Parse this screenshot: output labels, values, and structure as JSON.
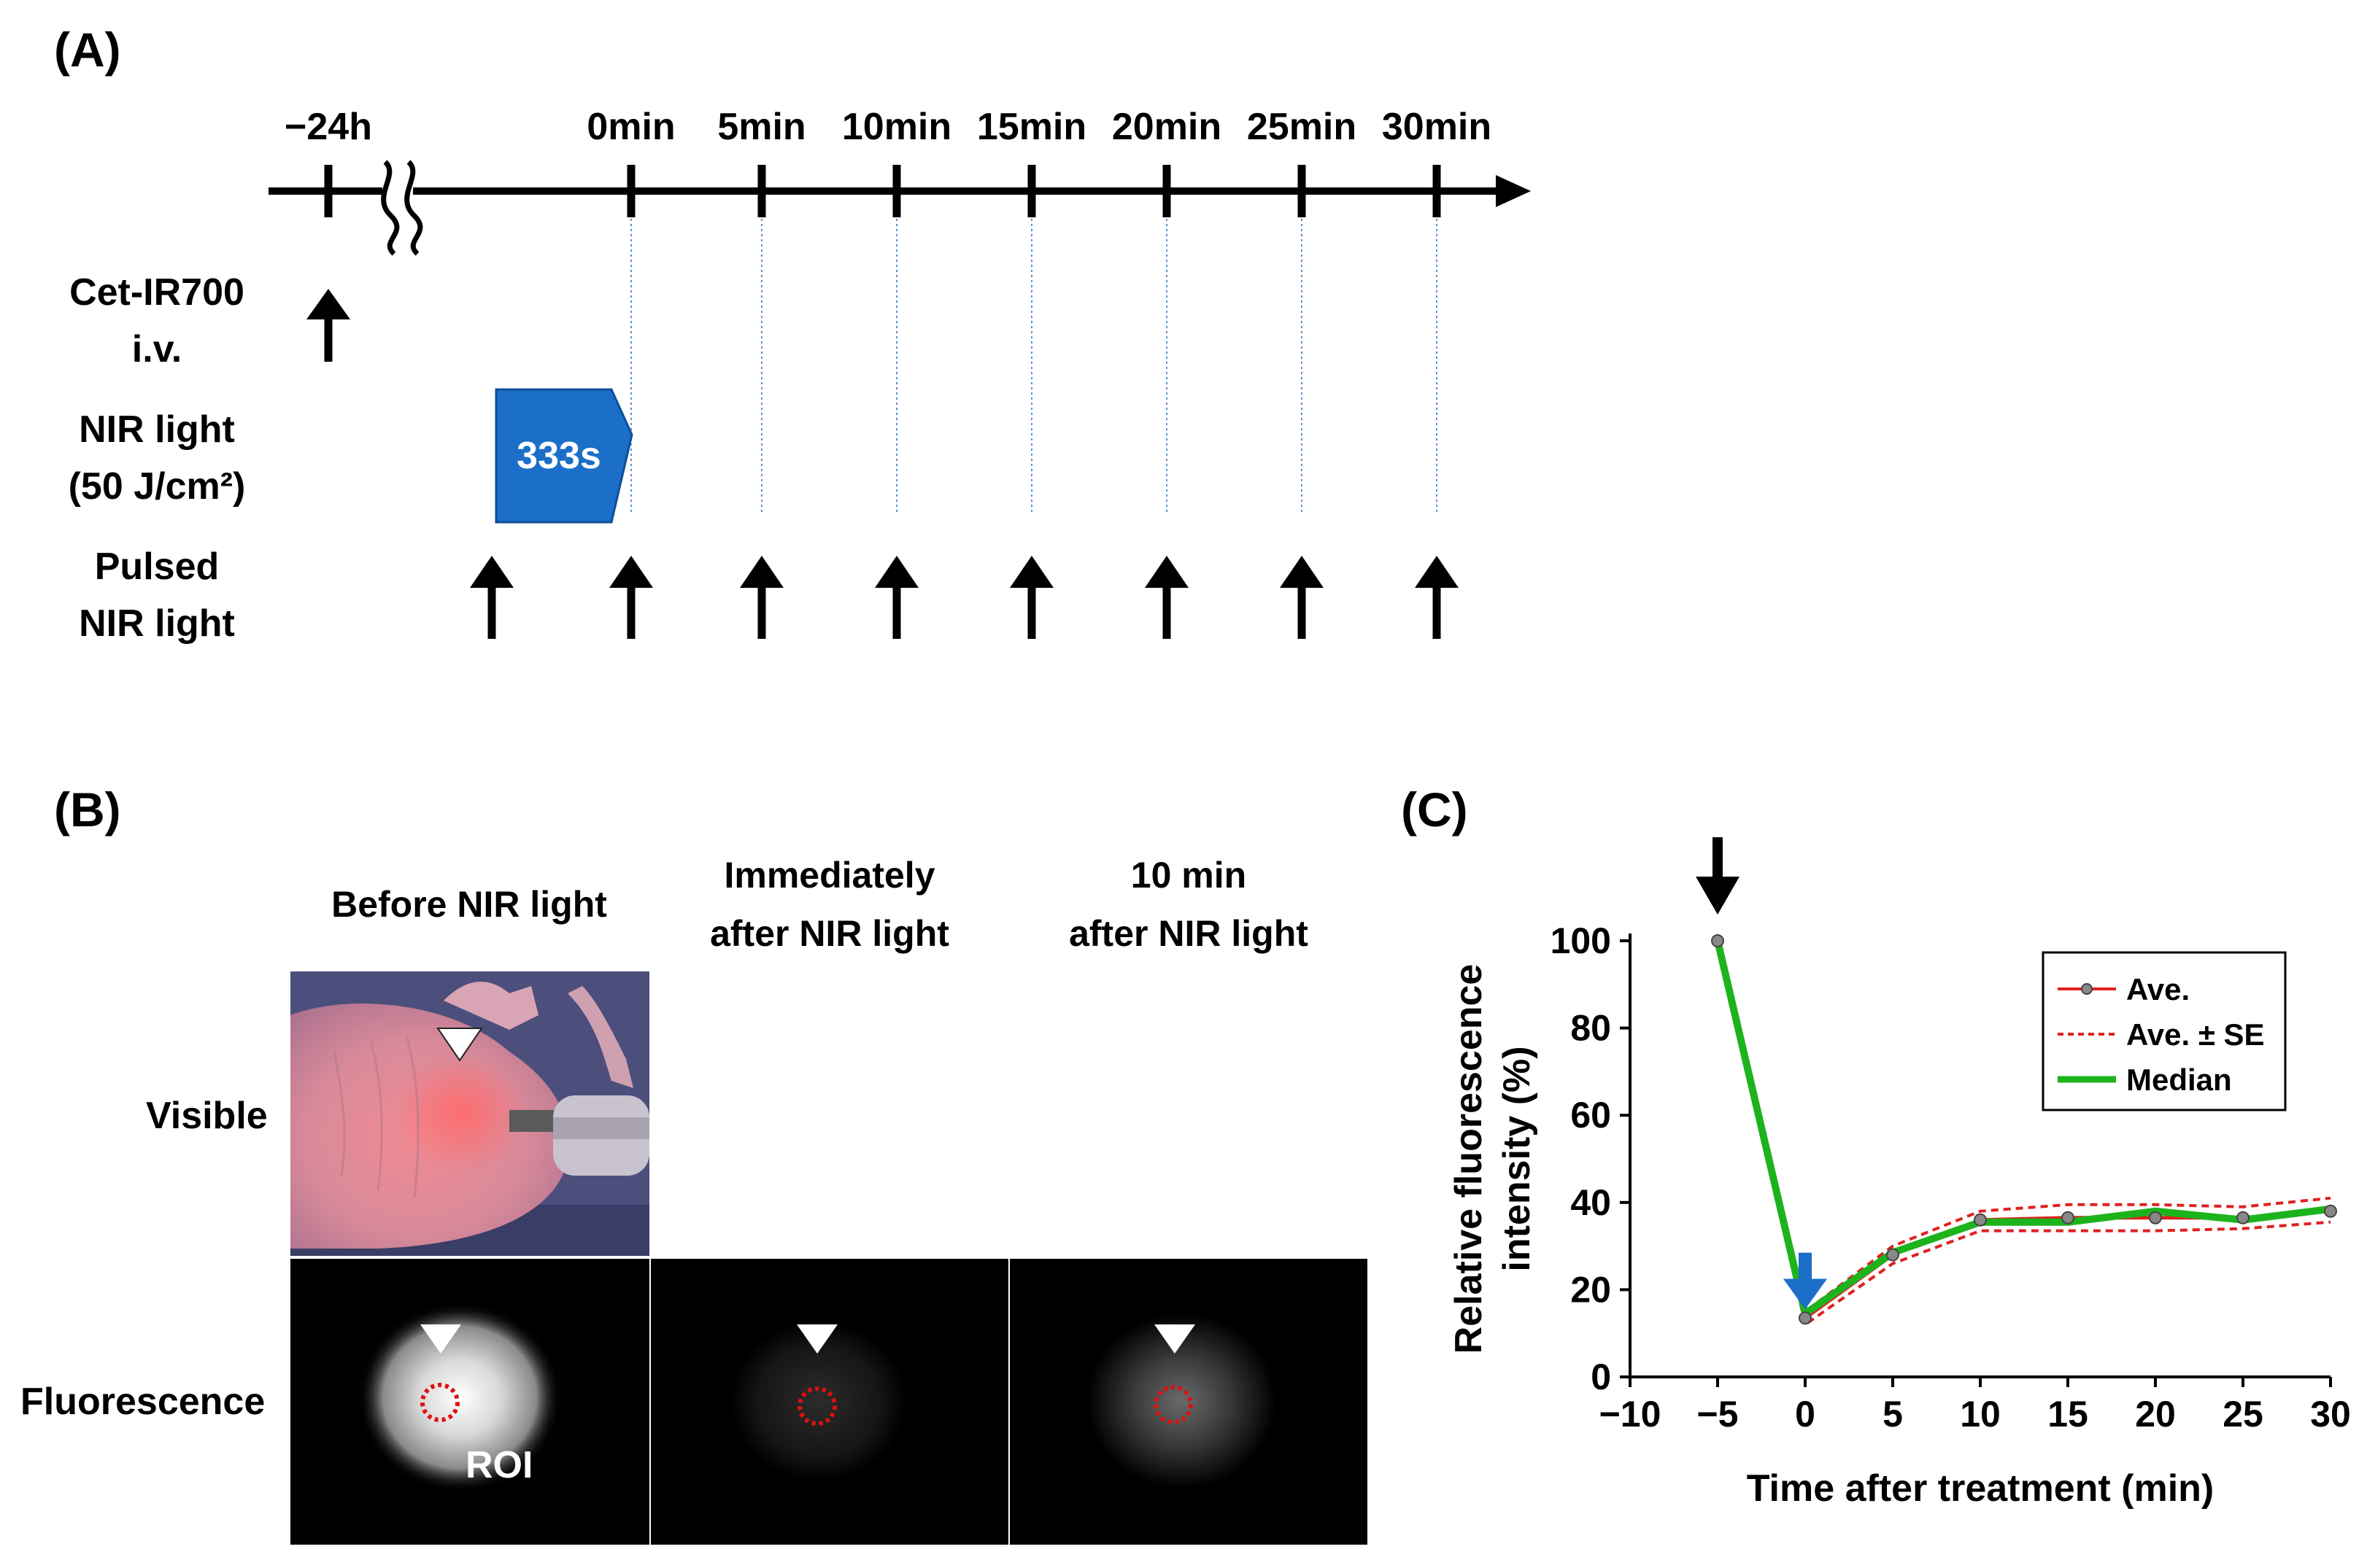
{
  "panel_a": {
    "label": "(A)",
    "timeline_labels": [
      "−24h",
      "0min",
      "5min",
      "10min",
      "15min",
      "20min",
      "25min",
      "30min"
    ],
    "rows": [
      {
        "line1": "Cet-IR700",
        "line2": "i.v."
      },
      {
        "line1": "NIR light",
        "line2": "(50 J/cm²)"
      },
      {
        "line1": "Pulsed",
        "line2": "NIR light"
      }
    ],
    "light_box_label": "333s",
    "colors": {
      "light_box": "#1b6fc8",
      "guide_lines": "#5b8fd6"
    }
  },
  "panel_b": {
    "label": "(B)",
    "col_titles": [
      {
        "line1": "Before NIR light",
        "line2": ""
      },
      {
        "line1": "Immediately",
        "line2": "after NIR light"
      },
      {
        "line1": "10 min",
        "line2": "after NIR light"
      }
    ],
    "row_labels": [
      "Visible",
      "Fluorescence"
    ],
    "roi_label": "ROI",
    "colors": {
      "roi": "#e01010"
    }
  },
  "panel_c": {
    "label": "(C)",
    "chart_data": {
      "type": "line",
      "xlabel": "Time after treatment (min)",
      "ylabel_lines": [
        "Relative fluorescence",
        "intensity (%)"
      ],
      "xlim": [
        -10,
        30
      ],
      "ylim": [
        0,
        100
      ],
      "xticks": [
        -10,
        -5,
        0,
        5,
        10,
        15,
        20,
        25,
        30
      ],
      "yticks": [
        0,
        20,
        40,
        60,
        80,
        100
      ],
      "x": [
        -5,
        0,
        5,
        10,
        15,
        20,
        25,
        30
      ],
      "series": [
        {
          "name": "Ave.",
          "color": "#e02020",
          "values": [
            100,
            13.5,
            28,
            36,
            36.5,
            36.5,
            36.5,
            38
          ]
        },
        {
          "name": "Ave. ± SE",
          "color": "#e02020",
          "dashed": true,
          "upper": [
            100,
            15,
            30,
            38,
            39.5,
            39.5,
            39,
            41
          ],
          "lower": [
            100,
            12,
            26,
            33.5,
            33.5,
            33.5,
            34,
            35.5
          ]
        },
        {
          "name": "Median",
          "color": "#1db31d",
          "values": [
            100,
            14.5,
            28.5,
            35.5,
            35.5,
            38,
            36,
            38.5
          ]
        }
      ],
      "legend_position": "top-right",
      "annotations": [
        {
          "type": "arrow",
          "color": "#000000",
          "x": -5
        },
        {
          "type": "arrow",
          "color": "#1b6fc8",
          "x": 0
        }
      ]
    }
  }
}
